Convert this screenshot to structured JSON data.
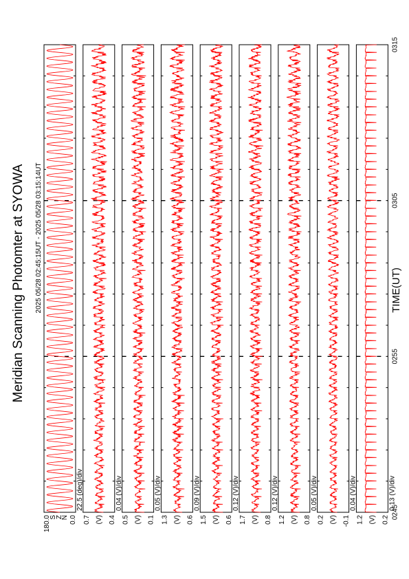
{
  "title": "Meridian Scanning Photomter at SYOWA",
  "subtitle": "2025 05/28 02:45:15UT - 2025 05/28 03:15:14UT",
  "xlabel": "TIME(UT)",
  "colors": {
    "trace": "#ff0000",
    "frame": "#000000",
    "background": "#ffffff"
  },
  "chart_data": {
    "type": "line",
    "rotated": "figure rotated 90 degrees counter-clockwise; time axis runs bottom-to-top",
    "title": "Meridian Scanning Photomter at SYOWA",
    "subtitle": "2025 05/28 02:45:15UT - 2025 05/28 03:15:14UT",
    "xlabel": "TIME(UT)",
    "x_ticks": [
      "0245",
      "0255",
      "0305",
      "0315"
    ],
    "x_minutes_range": [
      0,
      30
    ],
    "grid": "dashed vertical lines at each tick",
    "panels": [
      {
        "scale": "22.5 (deg)/div",
        "y_ticks": [
          "180.0",
          "S",
          "Z",
          "N",
          "0.0"
        ],
        "ylim": [
          0.0,
          180.0
        ],
        "period_min": 0.5,
        "amp": 0.9,
        "noise": 0.0,
        "spike": 0.0,
        "kind": "scan"
      },
      {
        "scale": "0.04 (V)/div",
        "y_ticks": [
          "0.7",
          "(V)",
          "0.4"
        ],
        "ylim": [
          0.4,
          0.7
        ],
        "period_min": 0.5,
        "amp": 0.35,
        "noise": 0.22,
        "spike": 0.35,
        "kind": "noisy"
      },
      {
        "scale": "0.05 (V)/div",
        "y_ticks": [
          "0.5",
          "(V)",
          "0.1"
        ],
        "ylim": [
          0.1,
          0.5
        ],
        "period_min": 0.5,
        "amp": 0.3,
        "noise": 0.2,
        "spike": 0.4,
        "kind": "noisy"
      },
      {
        "scale": "0.09 (V)/div",
        "y_ticks": [
          "1.3",
          "(V)",
          "0.6"
        ],
        "ylim": [
          0.6,
          1.3
        ],
        "period_min": 0.5,
        "amp": 0.3,
        "noise": 0.22,
        "spike": 0.4,
        "kind": "noisy"
      },
      {
        "scale": "0.12 (V)/div",
        "y_ticks": [
          "1.5",
          "(V)",
          "0.6"
        ],
        "ylim": [
          0.6,
          1.5
        ],
        "period_min": 0.5,
        "amp": 0.3,
        "noise": 0.2,
        "spike": 0.4,
        "kind": "noisy"
      },
      {
        "scale": "0.12 (V)/div",
        "y_ticks": [
          "1.7",
          "(V)",
          "0.8"
        ],
        "ylim": [
          0.8,
          1.7
        ],
        "period_min": 0.5,
        "amp": 0.3,
        "noise": 0.2,
        "spike": 0.4,
        "kind": "noisy"
      },
      {
        "scale": "0.05 (V)/div",
        "y_ticks": [
          "1.2",
          "(V)",
          "0.8"
        ],
        "ylim": [
          0.8,
          1.2
        ],
        "period_min": 0.5,
        "amp": 0.3,
        "noise": 0.2,
        "spike": 0.35,
        "kind": "noisy"
      },
      {
        "scale": "0.04 (V)/div",
        "y_ticks": [
          "0.2",
          "(V)",
          "-0.1"
        ],
        "ylim": [
          -0.1,
          0.2
        ],
        "period_min": 0.5,
        "amp": 0.3,
        "noise": 0.15,
        "spike": 0.3,
        "kind": "noisy"
      },
      {
        "scale": "0.13 (V)/div",
        "y_ticks": [
          "1.2",
          "(V)",
          "0.2"
        ],
        "ylim": [
          0.2,
          1.2
        ],
        "period_min": 0.5,
        "amp": 0.1,
        "noise": 0.04,
        "spike": 0.75,
        "kind": "spikes"
      }
    ]
  }
}
